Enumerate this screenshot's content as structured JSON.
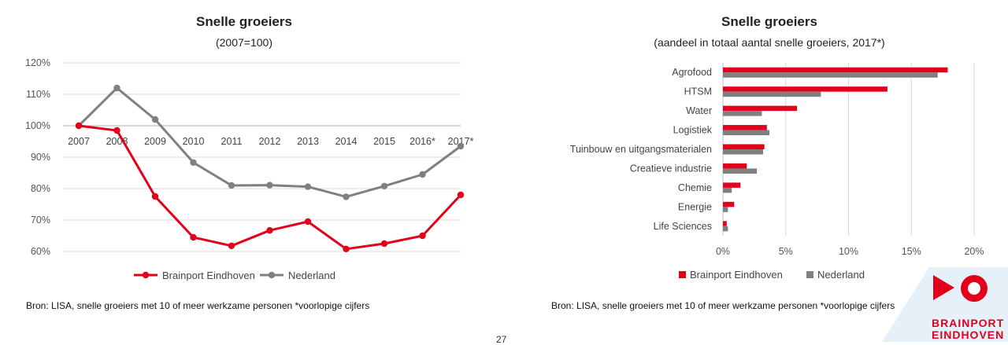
{
  "left_chart": {
    "title": "Snelle groeiers",
    "subtitle": "(2007=100)",
    "source": "Bron: LISA,  snelle groeiers met 10 of meer werkzame personen *voorlopige cijfers"
  },
  "right_chart": {
    "title": "Snelle groeiers",
    "subtitle": "(aandeel in totaal aantal snelle groeiers, 2017*)",
    "source": "Bron: LISA, snelle groeiers met 10 of meer werkzame personen *voorlopige cijfers"
  },
  "page_number": "27",
  "logo": {
    "line1": "BRAINPORT",
    "line2": "EINDHOVEN"
  },
  "colors": {
    "red": "#e2001a",
    "gray": "#808080",
    "grid": "#d9d9d9"
  },
  "chart_data": [
    {
      "type": "line",
      "title": "Snelle groeiers",
      "subtitle": "(2007=100)",
      "x": [
        "2007",
        "2008",
        "2009",
        "2010",
        "2011",
        "2012",
        "2013",
        "2014",
        "2015",
        "2016*",
        "2017*"
      ],
      "series": [
        {
          "name": "Brainport Eindhoven",
          "color": "#e2001a",
          "values": [
            100,
            98.5,
            77.5,
            64.5,
            61.8,
            66.7,
            69.5,
            60.8,
            62.5,
            65,
            78
          ]
        },
        {
          "name": "Nederland",
          "color": "#808080",
          "values": [
            100,
            112,
            102,
            88.3,
            81,
            81.1,
            80.6,
            77.4,
            80.8,
            84.5,
            93.5
          ]
        }
      ],
      "yticks": [
        "60%",
        "70%",
        "80%",
        "90%",
        "100%",
        "110%",
        "120%"
      ],
      "ylim": [
        60,
        120
      ],
      "xaxis_at": 100,
      "legend": "bottom"
    },
    {
      "type": "bar",
      "orientation": "horizontal",
      "title": "Snelle groeiers",
      "subtitle": "(aandeel in totaal aantal snelle groeiers, 2017*)",
      "categories": [
        "Agrofood",
        "HTSM",
        "Water",
        "Logistiek",
        "Tuinbouw en uitgangsmaterialen",
        "Creatieve industrie",
        "Chemie",
        "Energie",
        "Life Sciences"
      ],
      "series": [
        {
          "name": "Brainport Eindhoven",
          "color": "#e2001a",
          "values": [
            17.9,
            13.1,
            5.9,
            3.5,
            3.3,
            1.9,
            1.4,
            0.9,
            0.3
          ]
        },
        {
          "name": "Nederland",
          "color": "#808080",
          "values": [
            17.1,
            7.8,
            3.1,
            3.7,
            3.2,
            2.7,
            0.7,
            0.4,
            0.4
          ]
        }
      ],
      "xticks": [
        "0%",
        "5%",
        "10%",
        "15%",
        "20%"
      ],
      "xlim": [
        0,
        20
      ],
      "legend": "bottom"
    }
  ]
}
